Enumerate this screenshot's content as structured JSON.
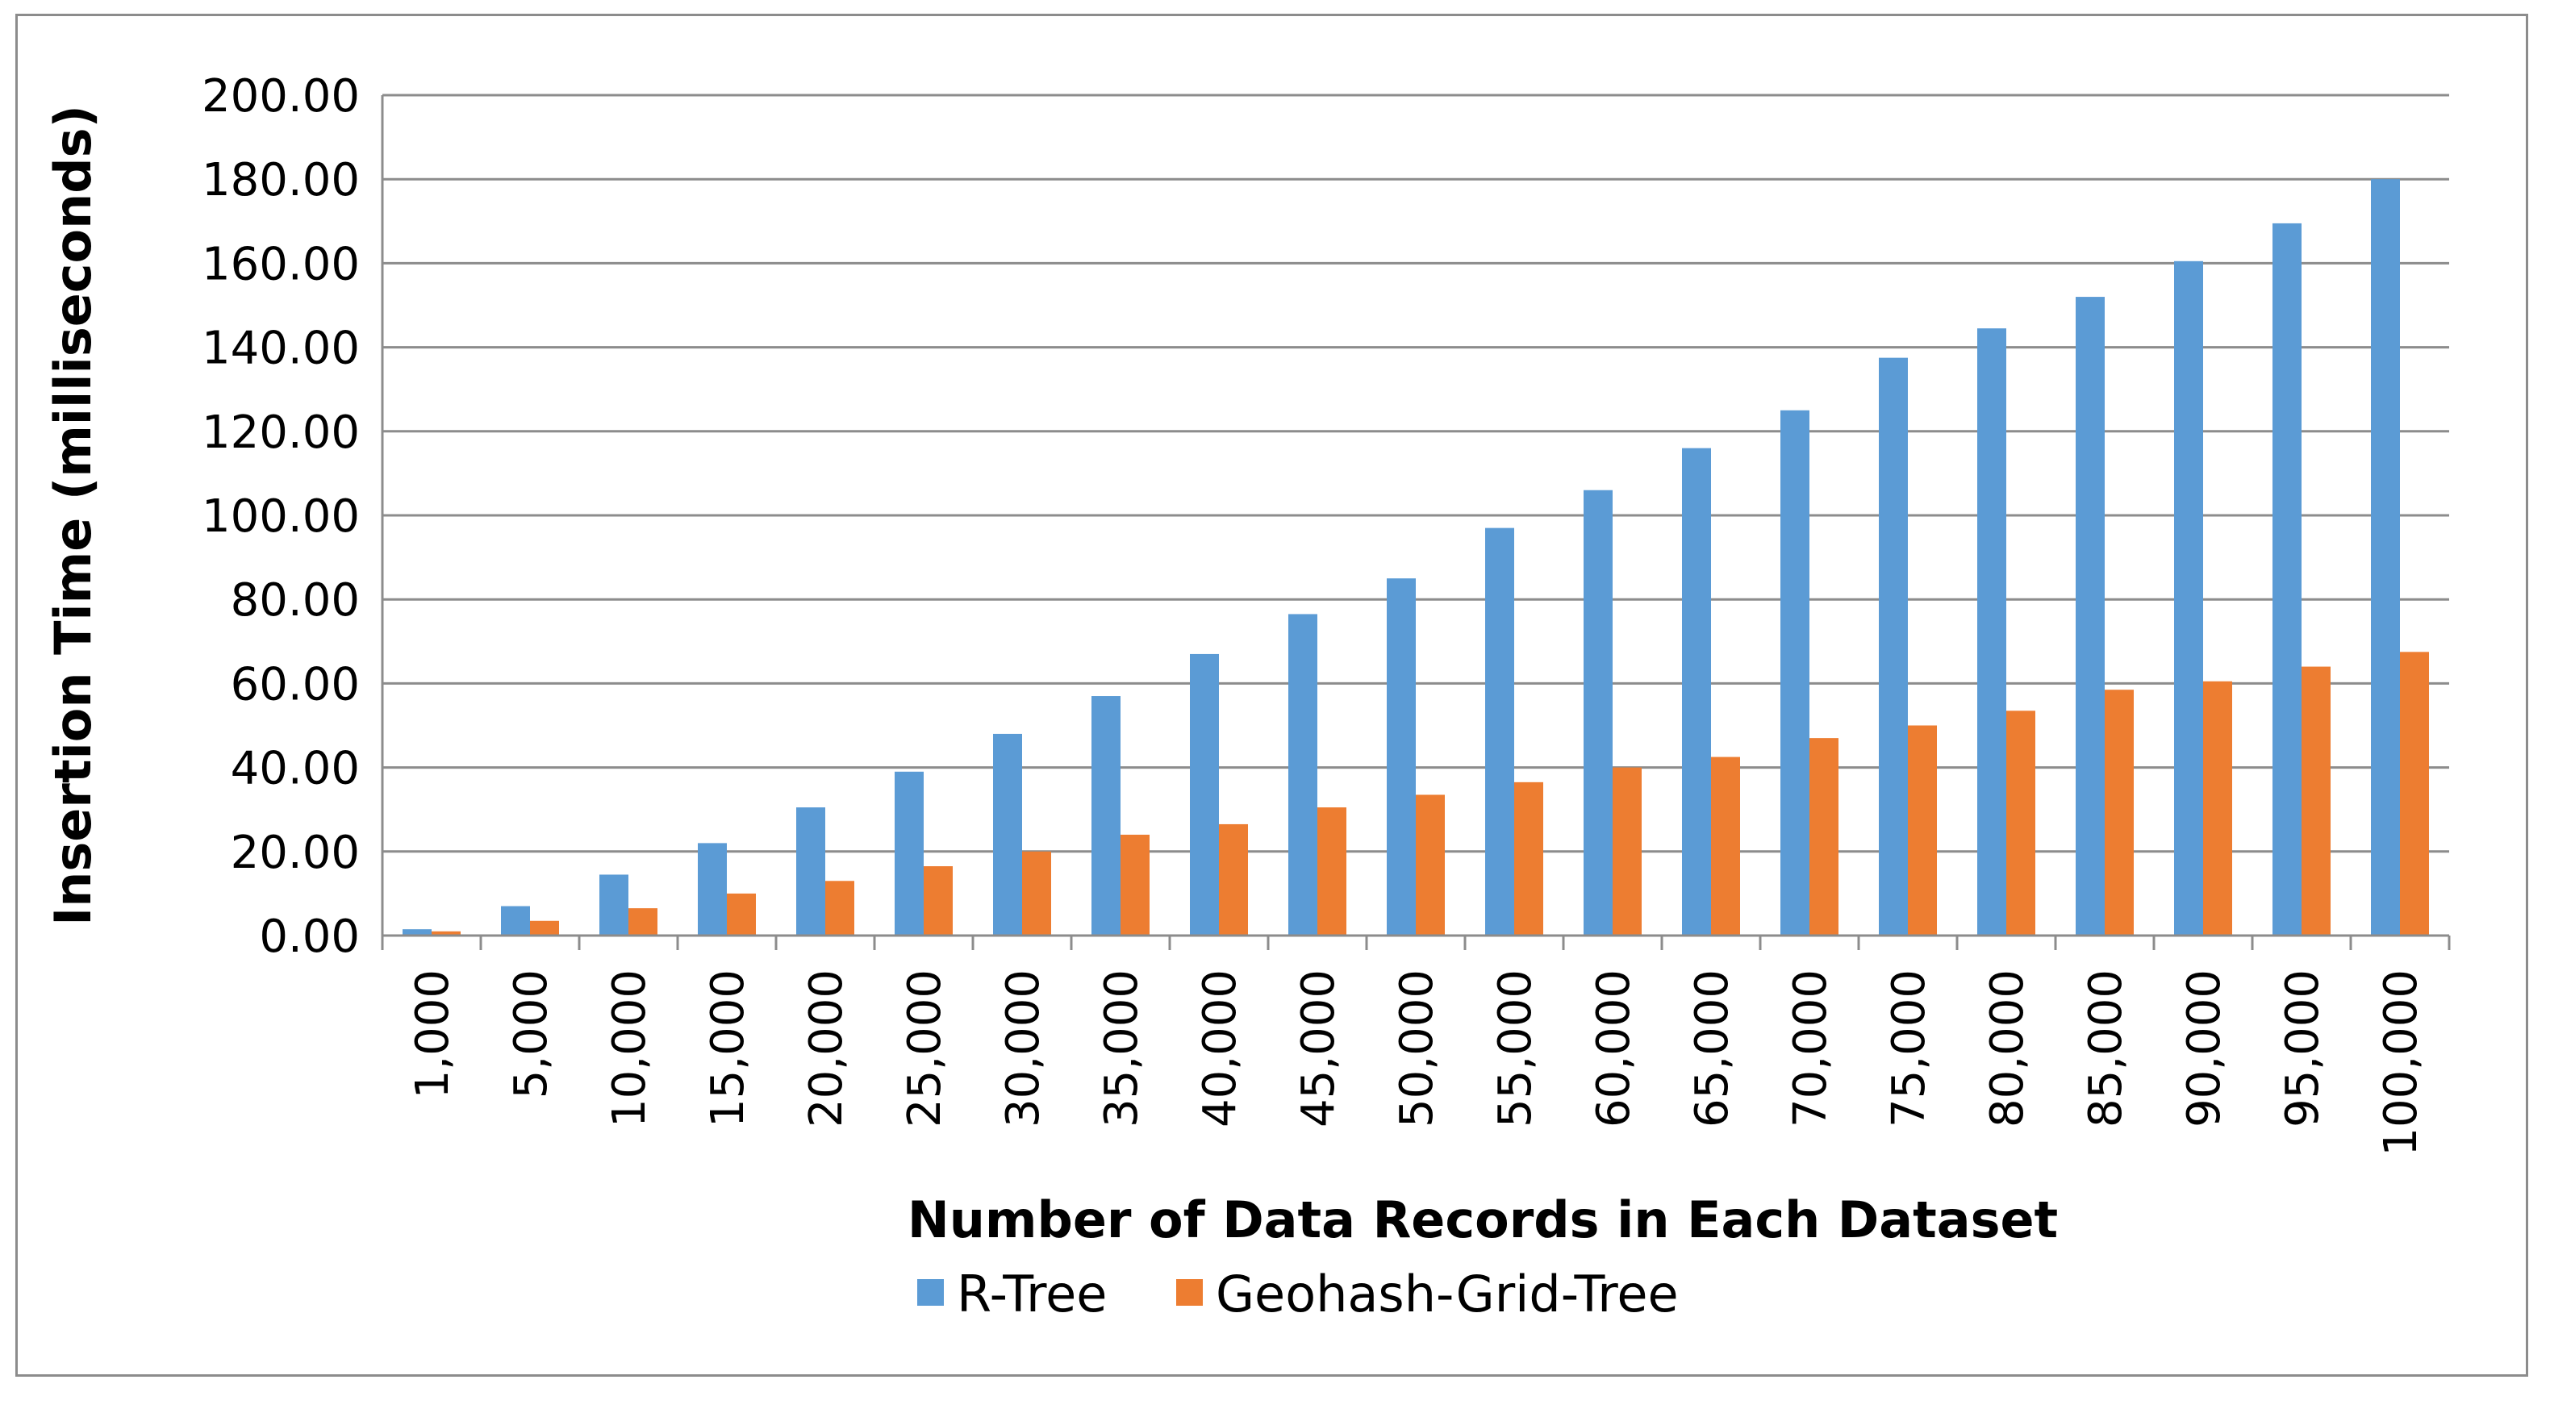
{
  "chart_data": {
    "type": "bar",
    "title": "",
    "xlabel": "Number of Data Records in Each Dataset",
    "ylabel": "Insertion Time (milliseconds)",
    "ylim": [
      0,
      200
    ],
    "yticks": [
      "0.00",
      "20.00",
      "40.00",
      "60.00",
      "80.00",
      "100.00",
      "120.00",
      "140.00",
      "160.00",
      "180.00",
      "200.00"
    ],
    "grid": true,
    "legend_position": "bottom",
    "categories": [
      "1,000",
      "5,000",
      "10,000",
      "15,000",
      "20,000",
      "25,000",
      "30,000",
      "35,000",
      "40,000",
      "45,000",
      "50,000",
      "55,000",
      "60,000",
      "65,000",
      "70,000",
      "75,000",
      "80,000",
      "85,000",
      "90,000",
      "95,000",
      "100,000"
    ],
    "series": [
      {
        "name": "R-Tree",
        "color": "#5B9BD5",
        "values": [
          1.5,
          7,
          14.5,
          22,
          30.5,
          39,
          48,
          57,
          67,
          76.5,
          85,
          97,
          106,
          116,
          125,
          137.5,
          144.5,
          152,
          160.5,
          169.5,
          180
        ]
      },
      {
        "name": "Geohash-Grid-Tree",
        "color": "#ED7D31",
        "values": [
          1,
          3.5,
          6.5,
          10,
          13,
          16.5,
          20,
          24,
          26.5,
          30.5,
          33.5,
          36.5,
          40,
          42.5,
          47,
          50,
          53.5,
          58.5,
          60.5,
          64,
          67.5
        ]
      }
    ]
  }
}
